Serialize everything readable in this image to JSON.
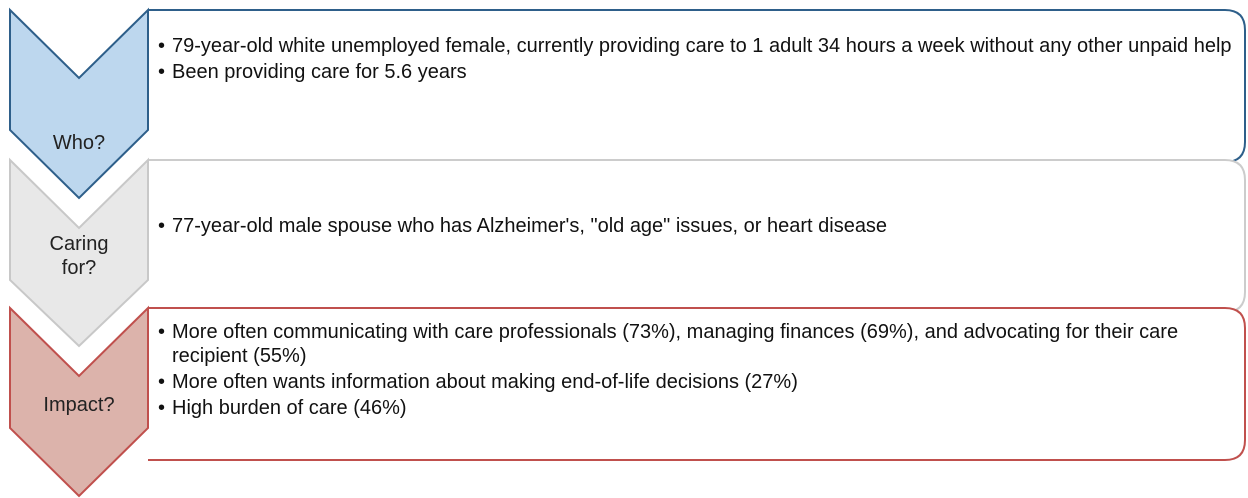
{
  "rows": [
    {
      "label": "Who?",
      "bullets": [
        "79-year-old white unemployed female, currently providing care to 1 adult 34 hours a week without any other unpaid help",
        "Been providing care for 5.6 years"
      ]
    },
    {
      "label": "Caring for?",
      "bullets": [
        "77-year-old male spouse who has Alzheimer's, \"old age\" issues, or heart disease"
      ]
    },
    {
      "label": "Impact?",
      "bullets": [
        "More often communicating with care professionals (73%), managing finances (69%), and advocating for their care recipient (55%)",
        "More often wants information about making end-of-life decisions (27%)",
        "High burden of care (46%)"
      ]
    }
  ]
}
